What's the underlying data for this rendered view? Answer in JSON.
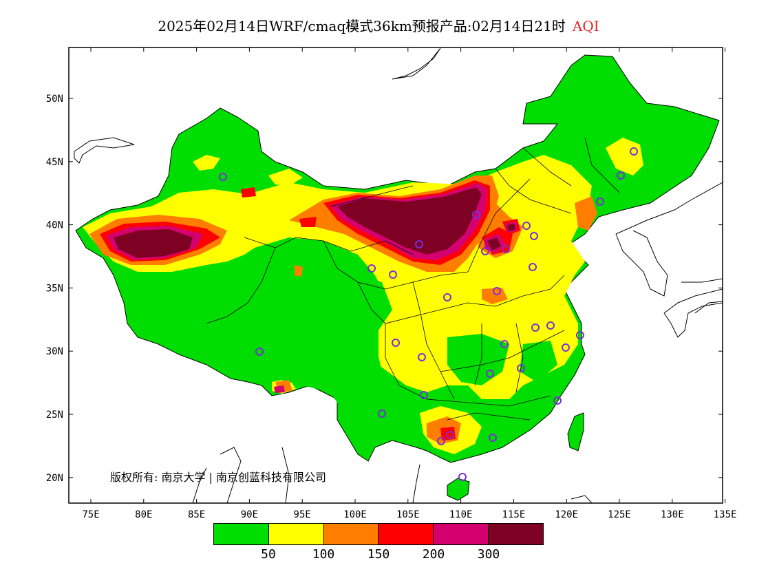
{
  "title": {
    "main": "2025年02月14日WRF/cmaq模式36km预报产品:02月14日21时",
    "variable": "AQI"
  },
  "axes": {
    "x_labels": [
      "75E",
      "80E",
      "85E",
      "90E",
      "95E",
      "100E",
      "105E",
      "110E",
      "115E",
      "120E",
      "125E",
      "130E",
      "135E"
    ],
    "y_labels": [
      "50N",
      "45N",
      "40N",
      "35N",
      "30N",
      "25N",
      "20N"
    ]
  },
  "copyright": "版权所有: 南京大学 | 南京创蓝科技有限公司",
  "legend": {
    "colors": [
      "#00dd00",
      "#ffff00",
      "#ff7e00",
      "#ff0000",
      "#d4006f",
      "#7e0023"
    ],
    "thresholds": [
      "50",
      "100",
      "150",
      "200",
      "300"
    ]
  },
  "colors": {
    "good": "#00dd00",
    "moderate": "#ffff00",
    "usg": "#ff7e00",
    "unhealthy": "#ff0000",
    "very_unhealthy": "#d4006f",
    "hazardous": "#7e0023",
    "city_marker": "#7b2fd8"
  },
  "icons": {
    "city": "circle-marker-icon"
  }
}
